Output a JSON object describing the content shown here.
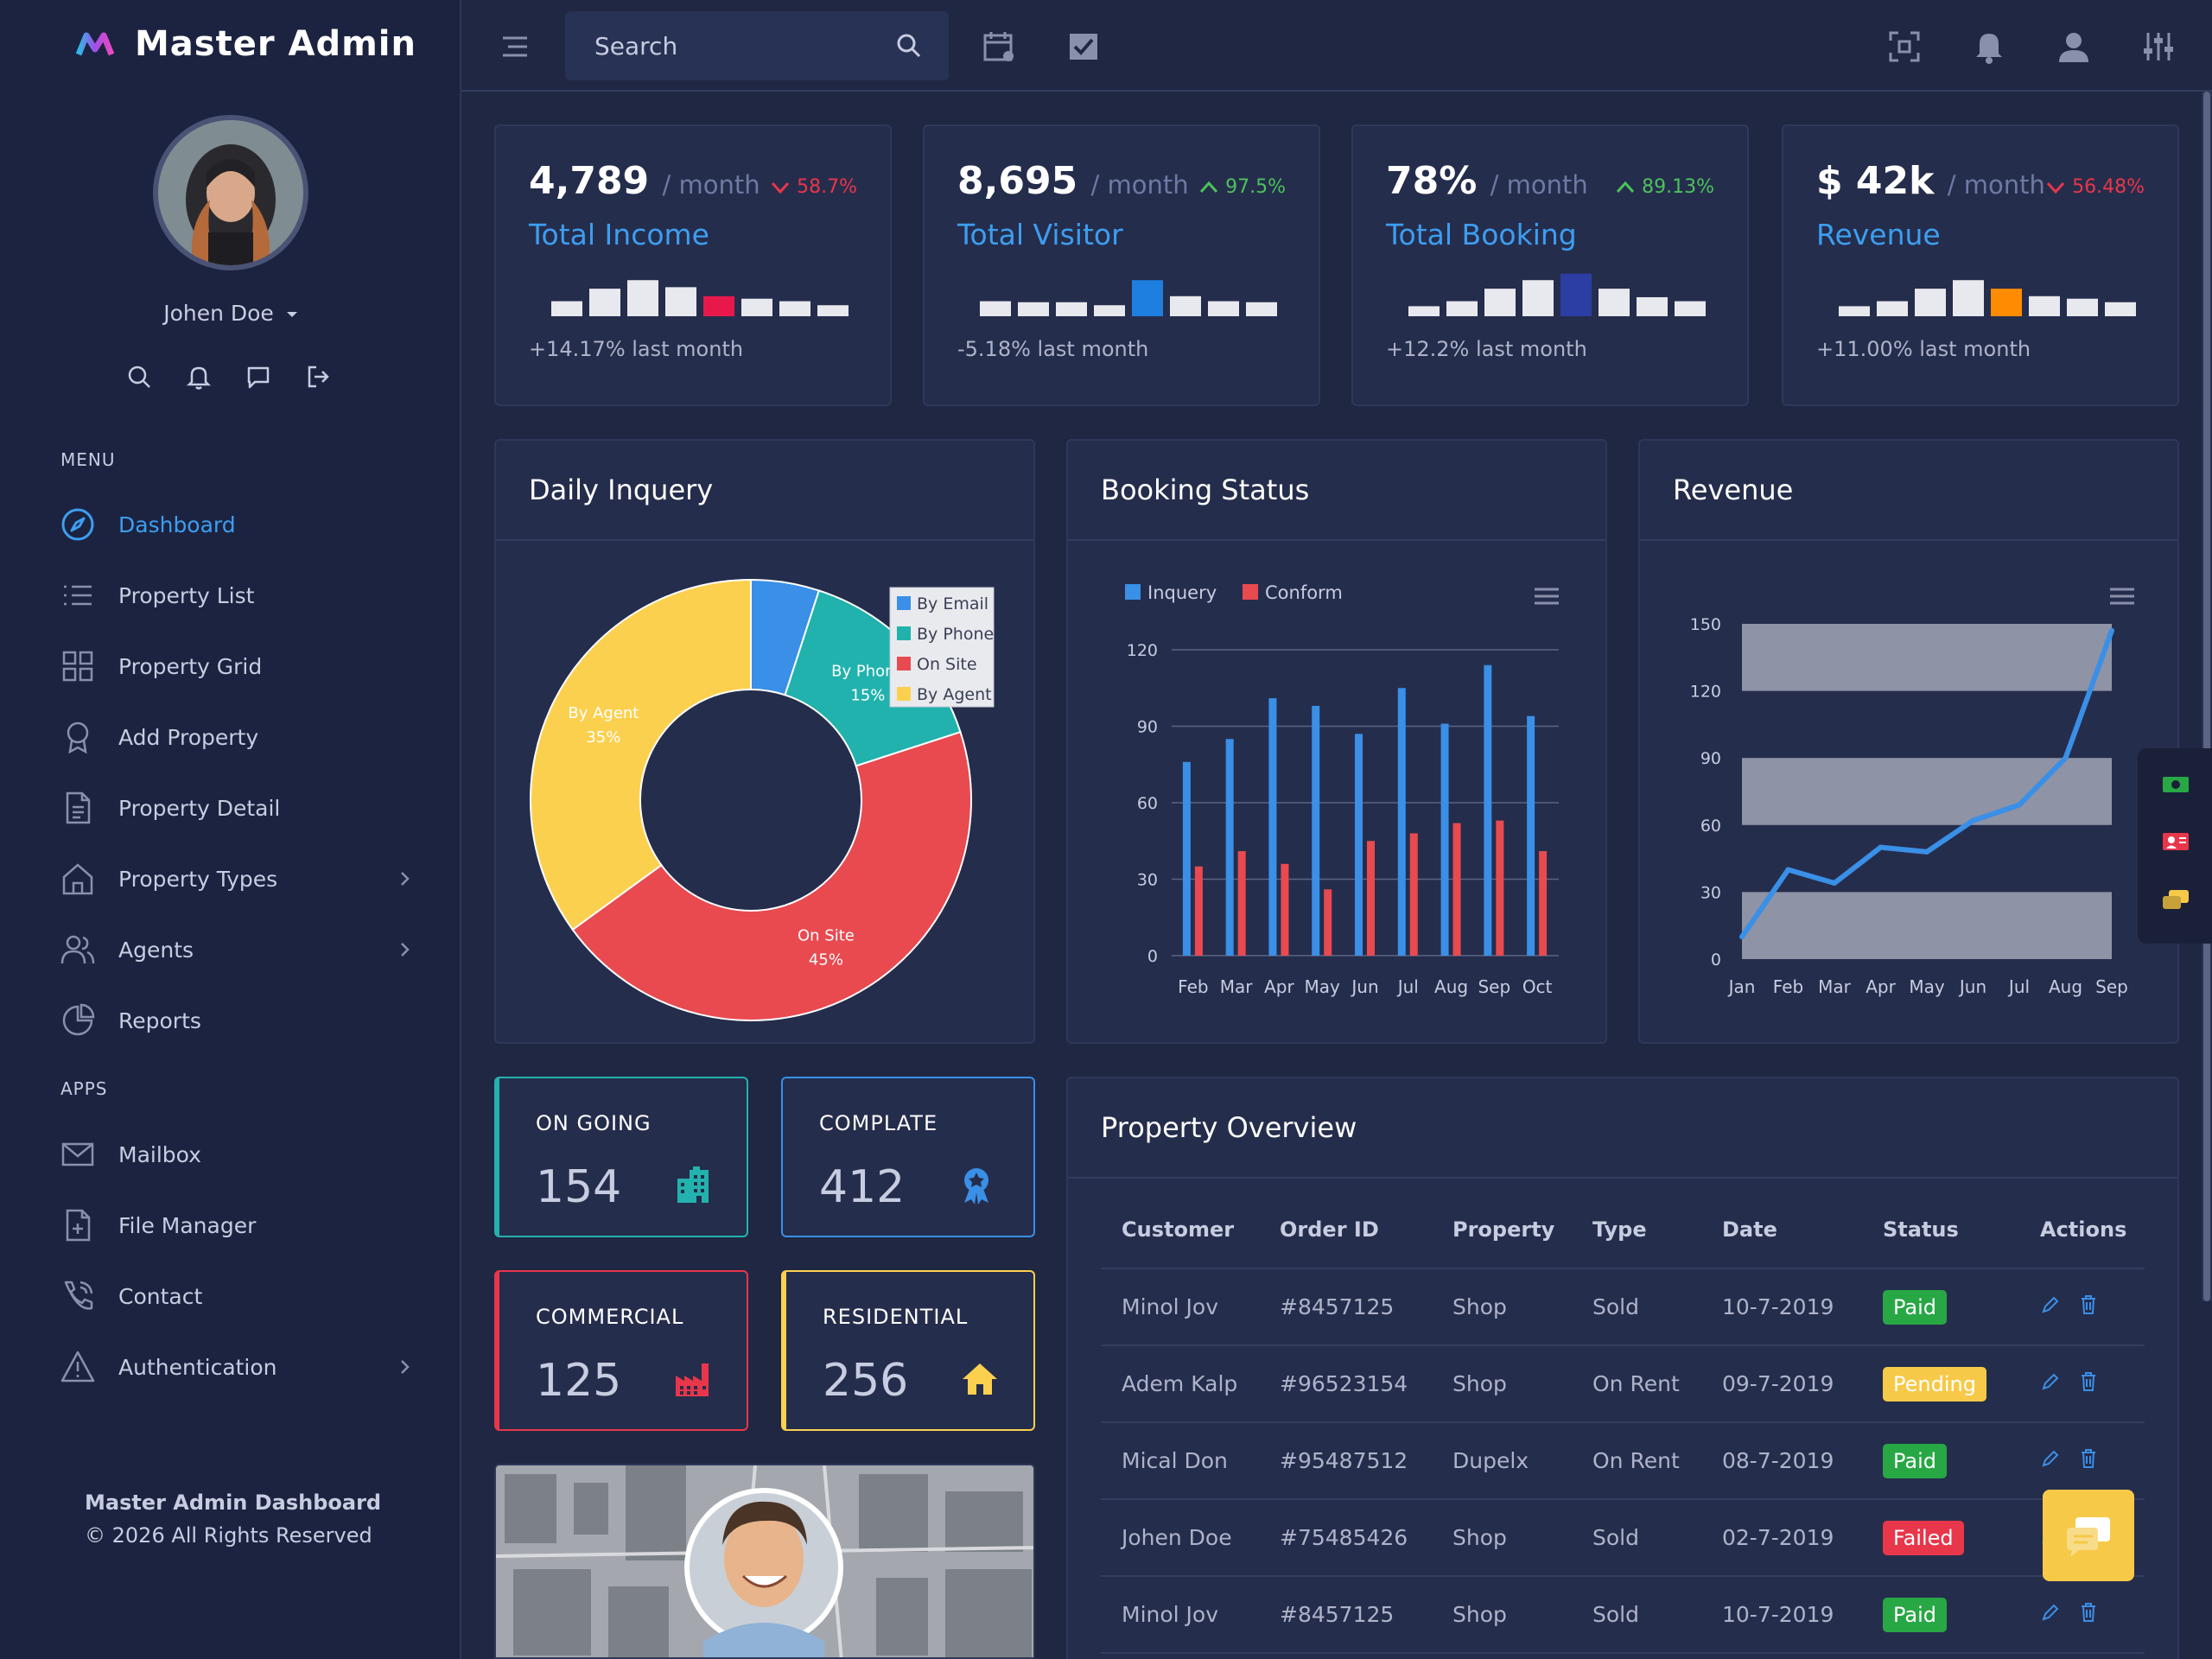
{
  "brand": {
    "name": "Master Admin"
  },
  "user": {
    "name": "Johen Doe"
  },
  "sidebar": {
    "menu_label": "MENU",
    "apps_label": "APPS",
    "menu": [
      {
        "label": "Dashboard",
        "icon": "compass-icon",
        "active": true
      },
      {
        "label": "Property List",
        "icon": "list-icon"
      },
      {
        "label": "Property Grid",
        "icon": "grid-icon"
      },
      {
        "label": "Add Property",
        "icon": "award-icon"
      },
      {
        "label": "Property Detail",
        "icon": "document-icon"
      },
      {
        "label": "Property Types",
        "icon": "home-icon",
        "has_children": true
      },
      {
        "label": "Agents",
        "icon": "users-icon",
        "has_children": true
      },
      {
        "label": "Reports",
        "icon": "pie-chart-icon"
      }
    ],
    "apps": [
      {
        "label": "Mailbox",
        "icon": "mail-icon"
      },
      {
        "label": "File Manager",
        "icon": "file-plus-icon"
      },
      {
        "label": "Contact",
        "icon": "phone-icon"
      },
      {
        "label": "Authentication",
        "icon": "alert-triangle-icon",
        "has_children": true
      }
    ],
    "footer_title": "Master Admin Dashboard",
    "footer_copy": "© 2026 All Rights Reserved"
  },
  "topbar": {
    "search_placeholder": "Search"
  },
  "stats": [
    {
      "value": "4,789",
      "unit": "/ month",
      "change": "58.7%",
      "direction": "down",
      "title": "Total Income",
      "sub": "+14.17% last month",
      "bars": [
        0.3,
        0.55,
        0.72,
        0.58,
        0.4,
        0.35,
        0.3,
        0.22
      ],
      "highlight": 4,
      "highlight_color": "#e8194a"
    },
    {
      "value": "8,695",
      "unit": "/ month",
      "change": "97.5%",
      "direction": "up",
      "title": "Total Visitor",
      "sub": "-5.18% last month",
      "bars": [
        0.3,
        0.28,
        0.28,
        0.22,
        0.72,
        0.4,
        0.3,
        0.28
      ],
      "highlight": 4,
      "highlight_color": "#1e7fe0"
    },
    {
      "value": "78%",
      "unit": "/ month",
      "change": "89.13%",
      "direction": "up",
      "title": "Total Booking",
      "sub": "+12.2% last month",
      "bars": [
        0.2,
        0.3,
        0.55,
        0.72,
        0.85,
        0.55,
        0.38,
        0.3
      ],
      "highlight": 4,
      "highlight_color": "#2c3ea3"
    },
    {
      "value": "$ 42k",
      "unit": "/ month",
      "change": "56.48%",
      "direction": "down",
      "title": "Revenue",
      "sub": "+11.00% last month",
      "bars": [
        0.2,
        0.3,
        0.55,
        0.72,
        0.55,
        0.4,
        0.35,
        0.28
      ],
      "highlight": 4,
      "highlight_color": "#ff8c00"
    }
  ],
  "colors": {
    "up": "#4cc25c",
    "down": "#e8364a",
    "accent": "#3d9ef0"
  },
  "panels": {
    "daily": "Daily Inquery",
    "booking": "Booking Status",
    "revenue": "Revenue",
    "property": "Property Overview"
  },
  "chart_data": [
    {
      "type": "pie",
      "title": "Daily Inquery",
      "legend_position": "top-right",
      "slices": [
        {
          "name": "By Email",
          "value": 5,
          "color": "#3a8fe6"
        },
        {
          "name": "By Phone",
          "value": 15,
          "color": "#21b2ad"
        },
        {
          "name": "On Site",
          "value": 45,
          "color": "#e84a50"
        },
        {
          "name": "By Agent",
          "value": 35,
          "color": "#fcd04f"
        }
      ],
      "labels": [
        {
          "name": "By Phone",
          "pct": "15%"
        },
        {
          "name": "On Site",
          "pct": "45%"
        },
        {
          "name": "By Agent",
          "pct": "35%"
        }
      ]
    },
    {
      "type": "bar",
      "title": "Booking Status",
      "legend_position": "top-left",
      "categories": [
        "Feb",
        "Mar",
        "Apr",
        "May",
        "Jun",
        "Jul",
        "Aug",
        "Sep",
        "Oct"
      ],
      "series": [
        {
          "name": "Inquery",
          "color": "#3a8fe6",
          "values": [
            76,
            85,
            101,
            98,
            87,
            105,
            91,
            114,
            94
          ]
        },
        {
          "name": "Conform",
          "color": "#e84a50",
          "values": [
            35,
            41,
            36,
            26,
            45,
            48,
            52,
            53,
            41
          ]
        }
      ],
      "yticks": [
        "0",
        "30",
        "60",
        "90",
        "120"
      ],
      "ylim": [
        0,
        120
      ],
      "grid": true
    },
    {
      "type": "line",
      "title": "Revenue",
      "x": [
        "Jan",
        "Feb",
        "Mar",
        "Apr",
        "May",
        "Jun",
        "Jul",
        "Aug",
        "Sep"
      ],
      "values": [
        10,
        40,
        34,
        50,
        48,
        62,
        69,
        90,
        147
      ],
      "color": "#3a8fe6",
      "yticks": [
        "0",
        "30",
        "60",
        "90",
        "120",
        "150"
      ],
      "ylim": [
        0,
        150
      ],
      "bands": [
        [
          0,
          30
        ],
        [
          60,
          90
        ],
        [
          120,
          150
        ]
      ],
      "band_color": "#8e93a6"
    }
  ],
  "mini_stats": [
    {
      "label": "ON GOING",
      "value": "154",
      "color": "#23b2ad",
      "icon": "building-icon"
    },
    {
      "label": "COMPLATE",
      "value": "412",
      "color": "#3a8fe6",
      "icon": "award-badge-icon"
    },
    {
      "label": "COMMERCIAL",
      "value": "125",
      "color": "#e8364a",
      "icon": "factory-icon"
    },
    {
      "label": "RESIDENTIAL",
      "value": "256",
      "color": "#fcd04f",
      "icon": "house-icon"
    }
  ],
  "table": {
    "headers": [
      "Customer",
      "Order ID",
      "Property",
      "Type",
      "Date",
      "Status",
      "Actions"
    ],
    "rows": [
      {
        "customer": "Minol Jov",
        "order": "#8457125",
        "property": "Shop",
        "type": "Sold",
        "date": "10-7-2019",
        "status": "Paid",
        "status_color": "#28a745"
      },
      {
        "customer": "Adem Kalp",
        "order": "#96523154",
        "property": "Shop",
        "type": "On Rent",
        "date": "09-7-2019",
        "status": "Pending",
        "status_color": "#f7c948"
      },
      {
        "customer": "Mical Don",
        "order": "#95487512",
        "property": "Dupelx",
        "type": "On Rent",
        "date": "08-7-2019",
        "status": "Paid",
        "status_color": "#28a745"
      },
      {
        "customer": "Johen Doe",
        "order": "#75485426",
        "property": "Shop",
        "type": "Sold",
        "date": "02-7-2019",
        "status": "Failed",
        "status_color": "#e8364a"
      },
      {
        "customer": "Minol Jov",
        "order": "#8457125",
        "property": "Shop",
        "type": "Sold",
        "date": "10-7-2019",
        "status": "Paid",
        "status_color": "#28a745"
      }
    ]
  }
}
